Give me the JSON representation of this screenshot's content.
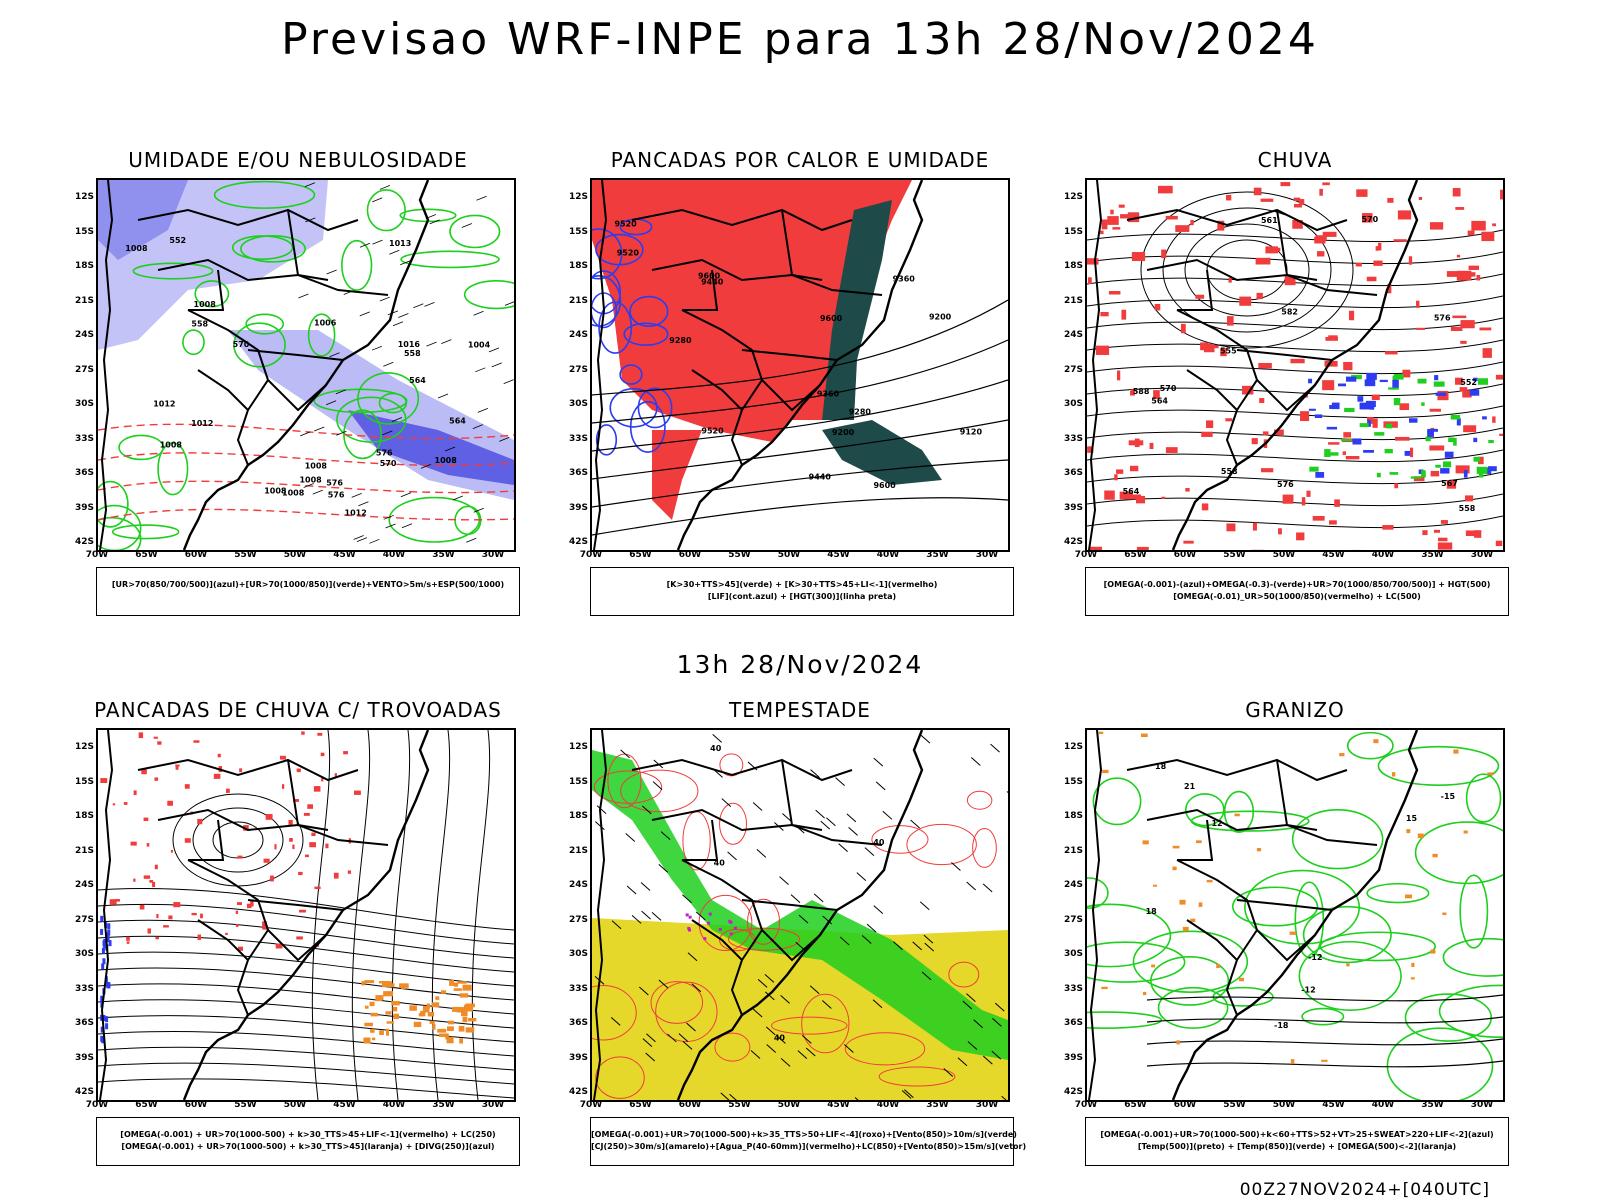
{
  "main_title": "Previsao WRF-INPE  para 13h 28/Nov/2024",
  "mid_title": "13h 28/Nov/2024",
  "footer": "00Z27NOV2024+[040UTC]",
  "lat_ticks": [
    "12S",
    "15S",
    "18S",
    "21S",
    "24S",
    "27S",
    "30S",
    "33S",
    "36S",
    "39S",
    "42S"
  ],
  "lon_ticks": [
    "70W",
    "65W",
    "60W",
    "55W",
    "50W",
    "45W",
    "40W",
    "35W",
    "30W"
  ],
  "panels": [
    {
      "title": "UMIDADE E/OU NEBULOSIDADE",
      "caption_lines": [
        "[UR>70(850/700/500)](azul)+[UR>70(1000/850)](verde)+VENTO>5m/s+ESP(500/1000)"
      ],
      "contour_labels": [
        "1008",
        "1008",
        "1006",
        "1008",
        "1004",
        "1008",
        "1008",
        "1012",
        "1016",
        "1008",
        "1012",
        "1008",
        "1008",
        "1012",
        "1013",
        "576",
        "576",
        "570",
        "564",
        "558",
        "552",
        "564",
        "558",
        "570",
        "576"
      ]
    },
    {
      "title": "PANCADAS POR CALOR E UMIDADE",
      "caption_lines": [
        "[K>30+TTS>45](verde) + [K>30+TTS>45+LI<-1](vermelho)",
        "[LIF](cont.azul) + [HGT(300)](linha preta)"
      ],
      "contour_labels": [
        "9600",
        "9520",
        "9600",
        "9600",
        "9520",
        "9440",
        "9520",
        "9360",
        "9440",
        "9360",
        "9280",
        "9280",
        "9200",
        "9120",
        "9200"
      ]
    },
    {
      "title": "CHUVA",
      "caption_lines": [
        "[OMEGA(-0.001)-(azul)+OMEGA(-0.3)-(verde)+UR>70(1000/850/700/500)] + HGT(500)",
        "[OMEGA(-0.01)_UR>50(1000/850)(vermelho) + LC(500)"
      ],
      "contour_labels": [
        "588",
        "582",
        "576",
        "570",
        "564",
        "558",
        "552",
        "576",
        "570",
        "567",
        "564",
        "561",
        "558",
        "555"
      ]
    },
    {
      "title": "PANCADAS DE CHUVA C/ TROVOADAS",
      "caption_lines": [
        "[OMEGA(-0.001) + UR>70(1000-500) + k>30_TTS>45+LIF<-1](vermelho) + LC(250)",
        "[OMEGA(-0.001) + UR>70(1000-500) + k>30_TTS>45](laranja) + [DIVG(250)](azul)"
      ],
      "contour_labels": []
    },
    {
      "title": "TEMPESTADE",
      "caption_lines": [
        "[OMEGA(-0.001)+UR>70(1000-500)+k>35_TTS>50+LIF<-4](roxo)+[Vento(850)>10m/s](verde)",
        "[CJ(250)>30m/s](amarelo)+[Agua_P(40-60mm)](vermelho)+LC(850)+[Vento(850)>15m/s](vetor)"
      ],
      "contour_labels": [
        "40",
        "40",
        "40",
        "40"
      ]
    },
    {
      "title": "GRANIZO",
      "caption_lines": [
        "[OMEGA(-0.001)+UR>70(1000-500)+k<60+TTS>52+VT>25+SWEAT>220+LIF<-2](azul)",
        "[Temp(500)](preto) + [Temp(850)](verde) + [OMEGA(500)<-2](laranja)"
      ],
      "contour_labels": [
        "-12",
        "-15",
        "-18",
        "15",
        "18",
        "12",
        "21",
        "-12",
        "18"
      ]
    }
  ],
  "colors": {
    "red": "#f03c3c",
    "green": "#1ecf1e",
    "blue": "#2c3cf0",
    "lightblue": "#b4b4f5",
    "darkteal": "#1f4a4a",
    "yellow": "#e6d82a",
    "orange": "#f08c28",
    "purple": "#c81ec8"
  }
}
